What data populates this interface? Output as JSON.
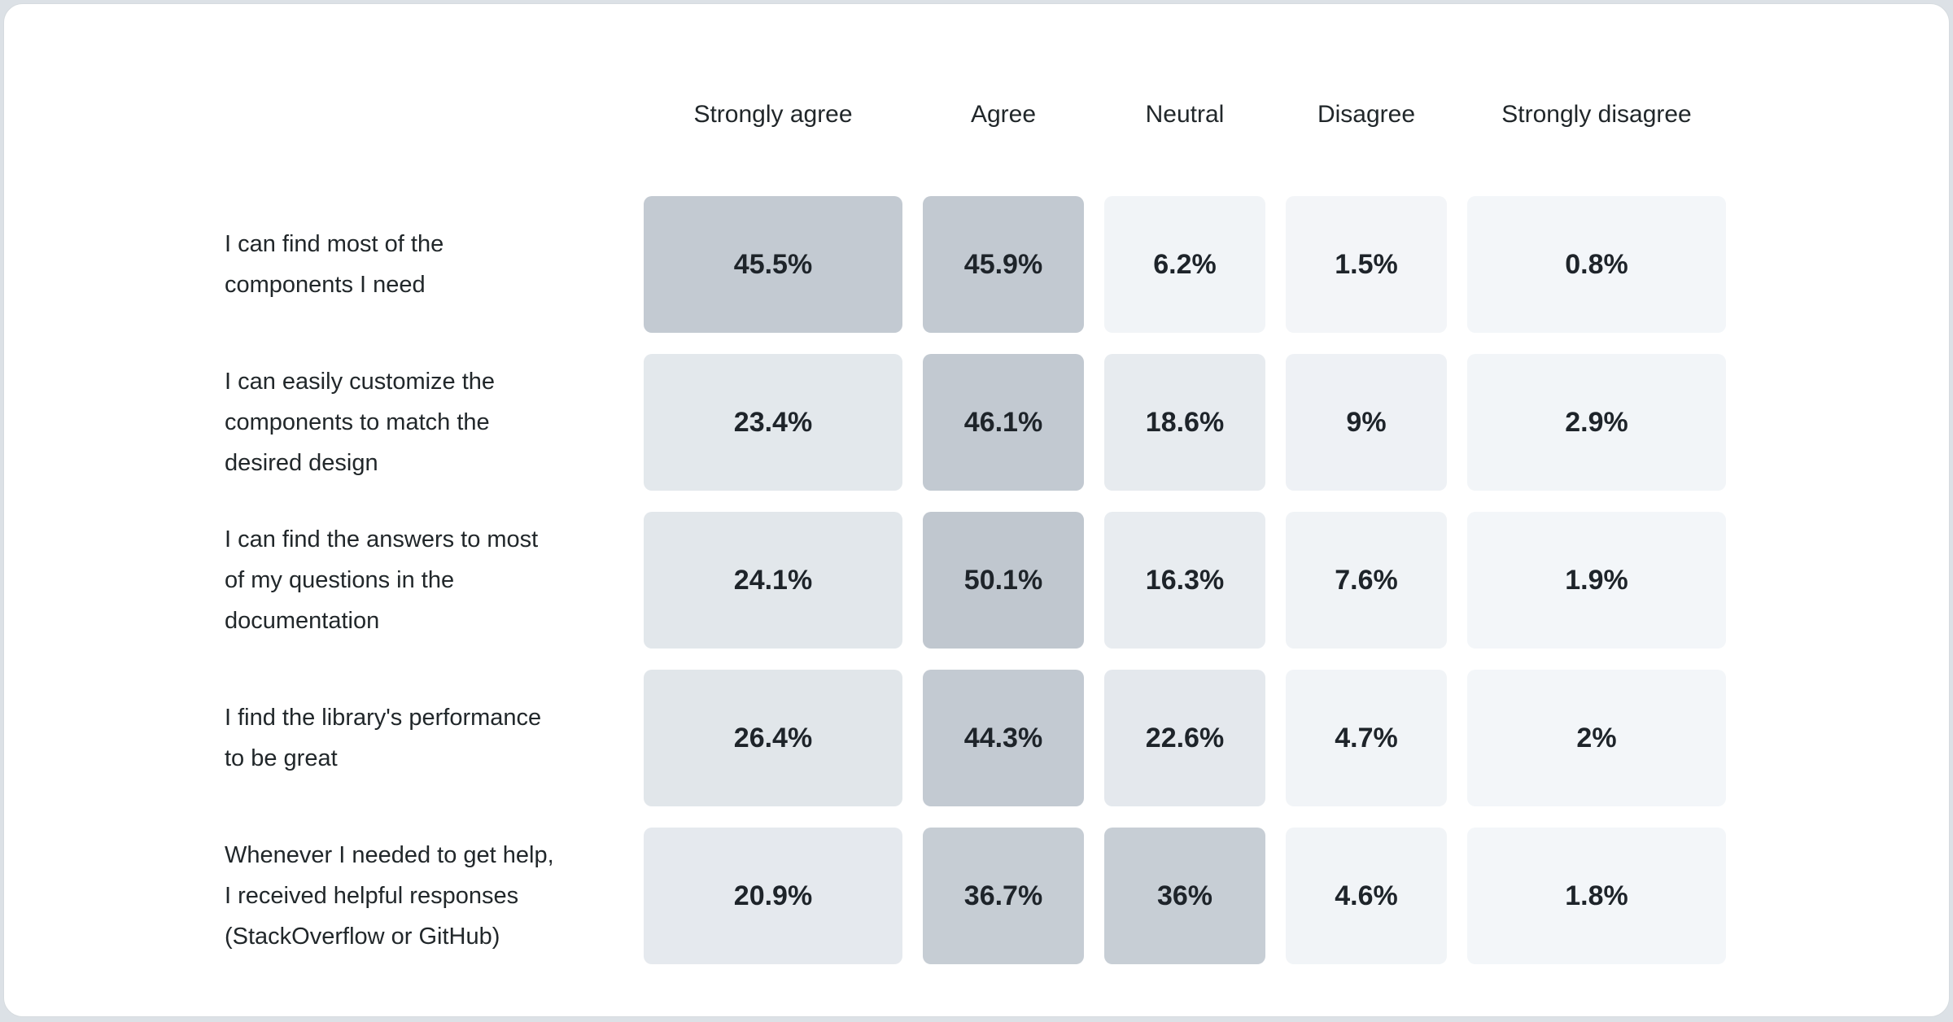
{
  "page": {
    "background_color": "#dce1e6",
    "card_background_color": "#ffffff"
  },
  "chart_data": {
    "type": "heatmap",
    "title": "",
    "legend_position": "none",
    "grid": false,
    "columns": [
      "Strongly agree",
      "Agree",
      "Neutral",
      "Disagree",
      "Strongly disagree"
    ],
    "rows": [
      {
        "label": "I can find most of the\ncomponents I need",
        "values": [
          "45.5%",
          "45.9%",
          "6.2%",
          "1.5%",
          "0.8%"
        ],
        "values_numeric": [
          45.5,
          45.9,
          6.2,
          1.5,
          0.8
        ],
        "cell_colors": [
          "#c3cad2",
          "#c2c9d1",
          "#f1f4f7",
          "#f3f5f8",
          "#f3f6f9"
        ]
      },
      {
        "label": "I can easily customize the\ncomponents to match the\ndesired design",
        "values": [
          "23.4%",
          "46.1%",
          "18.6%",
          "9%",
          "2.9%"
        ],
        "values_numeric": [
          23.4,
          46.1,
          18.6,
          9,
          2.9
        ],
        "cell_colors": [
          "#e3e8ec",
          "#c2c9d1",
          "#e7ebef",
          "#eef1f5",
          "#f2f5f8"
        ]
      },
      {
        "label": "I can find the answers to most\nof my questions in the\ndocumentation",
        "values": [
          "24.1%",
          "50.1%",
          "16.3%",
          "7.6%",
          "1.9%"
        ],
        "values_numeric": [
          24.1,
          50.1,
          16.3,
          7.6,
          1.9
        ],
        "cell_colors": [
          "#e2e7eb",
          "#c0c7cf",
          "#e8ecf0",
          "#f0f3f6",
          "#f3f6f9"
        ]
      },
      {
        "label": "I find the library's performance\nto be great",
        "values": [
          "26.4%",
          "44.3%",
          "22.6%",
          "4.7%",
          "2%"
        ],
        "values_numeric": [
          26.4,
          44.3,
          22.6,
          4.7,
          2
        ],
        "cell_colors": [
          "#e1e6ea",
          "#c3cad2",
          "#e4e8ed",
          "#f1f4f7",
          "#f3f6f9"
        ]
      },
      {
        "label": "Whenever I needed to get help,\nI received helpful responses\n(StackOverflow or GitHub)",
        "values": [
          "20.9%",
          "36.7%",
          "36%",
          "4.6%",
          "1.8%"
        ],
        "values_numeric": [
          20.9,
          36.7,
          36,
          4.6,
          1.8
        ],
        "cell_colors": [
          "#e5e9ee",
          "#c6cdd4",
          "#c7ced5",
          "#f1f4f7",
          "#f3f6f9"
        ]
      }
    ],
    "color_scale": {
      "min_value": 0,
      "max_value": 50.1,
      "min_color": "#f4f7f9",
      "max_color": "#c0c7cf"
    },
    "header_text_color": "#21272a",
    "label_text_color": "#21272a",
    "value_text_color": "#1e242a"
  }
}
